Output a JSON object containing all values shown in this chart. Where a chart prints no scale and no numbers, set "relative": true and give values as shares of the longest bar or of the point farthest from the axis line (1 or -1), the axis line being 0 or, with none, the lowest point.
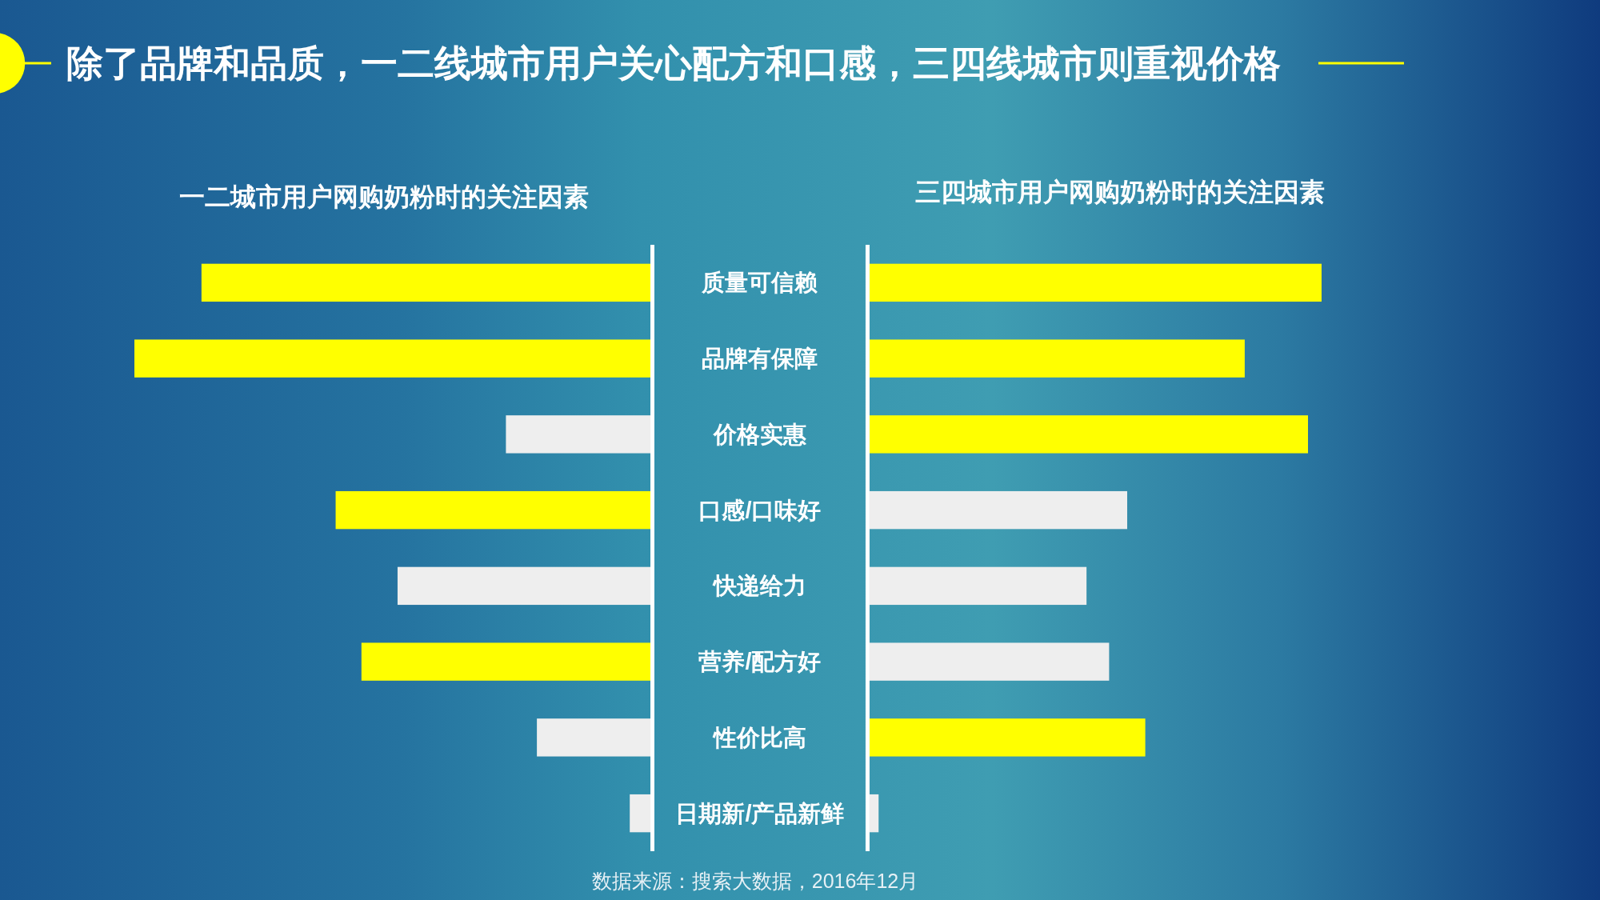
{
  "chart_data": [
    {
      "type": "bar",
      "orientation": "horizontal",
      "relative": true,
      "title": "除了品牌和品质，一二线城市用户关心配方和口感，三四线城市则重视价格",
      "subtitle": "一二城市用户网购奶粉时的关注因素",
      "categories": [
        "质量可信赖",
        "品牌有保障",
        "价格实惠",
        "口感/口味好",
        "快递给力",
        "营养/配方好",
        "性价比高",
        "日期新/产品新鲜"
      ],
      "values": [
        -0.87,
        -1,
        -0.28,
        -0.61,
        -0.49,
        -0.56,
        -0.22,
        -0.04
      ],
      "colors": [
        "#ffff00",
        "#ffff00",
        "#eeeeee",
        "#ffff00",
        "#eeeeee",
        "#ffff00",
        "#eeeeee",
        "#eeeeee"
      ],
      "annotations": [
        "数据来源：搜索大数据，2016年12月"
      ]
    },
    {
      "type": "bar",
      "orientation": "horizontal",
      "relative": true,
      "title": "三四城市用户网购奶粉时的关注因素",
      "tick_labels": false,
      "categories": [
        "质量可信赖",
        "品牌有保障",
        "价格实惠",
        "口感/口味好",
        "快递给力",
        "营养/配方好",
        "性价比高",
        "日期新/产品新鲜"
      ],
      "values": [
        1,
        0.83,
        0.97,
        0.57,
        0.48,
        0.53,
        0.61,
        0.02
      ],
      "colors": [
        "#ffff00",
        "#ffff00",
        "#ffff00",
        "#eeeeee",
        "#eeeeee",
        "#eeeeee",
        "#ffff00",
        "#eeeeee"
      ]
    }
  ]
}
